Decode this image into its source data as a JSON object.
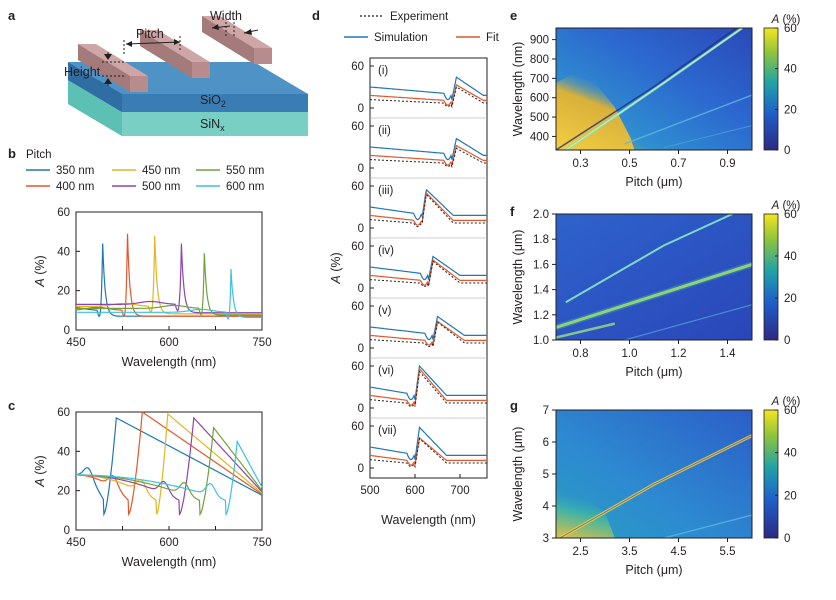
{
  "panel_labels": {
    "a": "a",
    "b": "b",
    "c": "c",
    "d": "d",
    "e": "e",
    "f": "f",
    "g": "g"
  },
  "schematic": {
    "pitch": "Pitch",
    "width": "Width",
    "height": "Height",
    "sio2": "SiO",
    "sio2_sub": "2",
    "sinx": "SiN",
    "sinx_sub": "x"
  },
  "legend_b": {
    "title": "Pitch",
    "entries": [
      {
        "label": "350 nm",
        "color": "#1f77b4"
      },
      {
        "label": "450 nm",
        "color": "#e3b51e"
      },
      {
        "label": "550 nm",
        "color": "#6fa33a"
      },
      {
        "label": "400 nm",
        "color": "#e4572e"
      },
      {
        "label": "500 nm",
        "color": "#8e44ad"
      },
      {
        "label": "600 nm",
        "color": "#3fc0e0"
      }
    ]
  },
  "legend_d": {
    "experiment": "Experiment",
    "simulation": "Simulation",
    "fit": "Fit"
  },
  "colorbar": {
    "label_A": "A",
    "label_unit": " (%)"
  },
  "chart_data": [
    {
      "id": "b",
      "type": "line",
      "xlabel": "Wavelength (nm)",
      "ylabel_A": "A",
      "ylabel_unit": " (%)",
      "xlim": [
        450,
        750
      ],
      "ylim": [
        0,
        60
      ],
      "xticks": [
        450,
        525,
        600,
        675,
        750
      ],
      "xtick_labels": [
        "450",
        "",
        "600",
        "",
        "750"
      ],
      "yticks": [
        0,
        20,
        40,
        60
      ],
      "ytick_labels": [
        "0",
        "20",
        "40",
        "60"
      ],
      "series": [
        {
          "name": "350 nm",
          "color": "#1f77b4",
          "peak": 493,
          "height": 43,
          "dip": 484,
          "base": 10
        },
        {
          "name": "400 nm",
          "color": "#e4572e",
          "peak": 533,
          "height": 48,
          "dip": 524,
          "base": 10
        },
        {
          "name": "450 nm",
          "color": "#e3b51e",
          "peak": 577,
          "height": 47,
          "dip": 567,
          "base": 12
        },
        {
          "name": "500 nm",
          "color": "#8e44ad",
          "peak": 620,
          "height": 43,
          "dip": 610,
          "base": 13
        },
        {
          "name": "550 nm",
          "color": "#6fa33a",
          "peak": 657,
          "height": 38,
          "dip": 648,
          "base": 11
        },
        {
          "name": "600 nm",
          "color": "#3fc0e0",
          "peak": 700,
          "height": 30,
          "dip": 692,
          "base": 9
        }
      ]
    },
    {
      "id": "c",
      "type": "line",
      "xlabel": "Wavelength (nm)",
      "ylabel_A": "A",
      "ylabel_unit": " (%)",
      "xlim": [
        450,
        750
      ],
      "ylim": [
        0,
        60
      ],
      "xticks": [
        450,
        525,
        600,
        675,
        750
      ],
      "xtick_labels": [
        "450",
        "",
        "600",
        "",
        "750"
      ],
      "yticks": [
        0,
        20,
        40,
        60
      ],
      "ytick_labels": [
        "0",
        "20",
        "40",
        "60"
      ],
      "series": [
        {
          "name": "350 nm",
          "color": "#1f77b4",
          "dip": 495,
          "peak": 515,
          "height": 57
        },
        {
          "name": "400 nm",
          "color": "#e4572e",
          "dip": 535,
          "peak": 557,
          "height": 60
        },
        {
          "name": "450 nm",
          "color": "#e3b51e",
          "dip": 580,
          "peak": 598,
          "height": 59
        },
        {
          "name": "500 nm",
          "color": "#8e44ad",
          "dip": 617,
          "peak": 640,
          "height": 57
        },
        {
          "name": "550 nm",
          "color": "#6fa33a",
          "dip": 650,
          "peak": 672,
          "height": 52
        },
        {
          "name": "600 nm",
          "color": "#3fc0e0",
          "dip": 692,
          "peak": 710,
          "height": 45
        }
      ]
    },
    {
      "id": "d",
      "type": "line",
      "xlabel": "Wavelength (nm)",
      "ylabel_A": "A",
      "ylabel_unit": " (%)",
      "xlim": [
        500,
        760
      ],
      "xticks": [
        500,
        600,
        700
      ],
      "xtick_labels": [
        "500",
        "600",
        "700"
      ],
      "subplot_yticks": [
        "0",
        "60"
      ],
      "subplots": [
        {
          "label": "(i)",
          "res": 682,
          "sim": 44,
          "fit": 33,
          "exp": 30
        },
        {
          "label": "(ii)",
          "res": 682,
          "sim": 42,
          "fit": 32,
          "exp": 28
        },
        {
          "label": "(iii)",
          "res": 615,
          "sim": 55,
          "fit": 50,
          "exp": 48
        },
        {
          "label": "(iv)",
          "res": 630,
          "sim": 45,
          "fit": 40,
          "exp": 38
        },
        {
          "label": "(v)",
          "res": 640,
          "sim": 45,
          "fit": 38,
          "exp": 37
        },
        {
          "label": "(vi)",
          "res": 600,
          "sim": 60,
          "fit": 56,
          "exp": 52
        },
        {
          "label": "(vii)",
          "res": 600,
          "sim": 58,
          "fit": 43,
          "exp": 42
        }
      ]
    },
    {
      "id": "e",
      "type": "heatmap",
      "xlabel": "Pitch (μm)",
      "ylabel": "Wavelength (nm)",
      "xlim": [
        0.2,
        1.0
      ],
      "ylim": [
        330,
        960
      ],
      "xticks": [
        0.3,
        0.5,
        0.7,
        0.9
      ],
      "xtick_labels": [
        "0.3",
        "0.5",
        "0.7",
        "0.9"
      ],
      "yticks": [
        400,
        500,
        600,
        700,
        800,
        900
      ],
      "ytick_labels": [
        "400",
        "500",
        "600",
        "700",
        "800",
        "900"
      ],
      "colorbar_ticks": [
        "0",
        "20",
        "40",
        "60"
      ],
      "colorbar_range": [
        0,
        60
      ]
    },
    {
      "id": "f",
      "type": "heatmap",
      "xlabel": "Pitch (μm)",
      "ylabel": "Wavelength (μm)",
      "xlim": [
        0.7,
        1.5
      ],
      "ylim": [
        1.0,
        2.0
      ],
      "xticks": [
        0.8,
        1.0,
        1.2,
        1.4
      ],
      "xtick_labels": [
        "0.8",
        "1.0",
        "1.2",
        "1.4"
      ],
      "yticks": [
        1.0,
        1.2,
        1.4,
        1.6,
        1.8,
        2.0
      ],
      "ytick_labels": [
        "1.0",
        "1.2",
        "1.4",
        "1.6",
        "1.8",
        "2.0"
      ],
      "colorbar_ticks": [
        "0",
        "20",
        "40",
        "60"
      ],
      "colorbar_range": [
        0,
        60
      ]
    },
    {
      "id": "g",
      "type": "heatmap",
      "xlabel": "Pitch (μm)",
      "ylabel": "Wavelength (μm)",
      "xlim": [
        2.0,
        6.0
      ],
      "ylim": [
        3,
        7
      ],
      "xticks": [
        2.5,
        3.5,
        4.5,
        5.5
      ],
      "xtick_labels": [
        "2.5",
        "3.5",
        "4.5",
        "5.5"
      ],
      "yticks": [
        3,
        4,
        5,
        6,
        7
      ],
      "ytick_labels": [
        "3",
        "4",
        "5",
        "6",
        "7"
      ],
      "colorbar_ticks": [
        "0",
        "20",
        "40",
        "60"
      ],
      "colorbar_range": [
        0,
        60
      ]
    }
  ]
}
